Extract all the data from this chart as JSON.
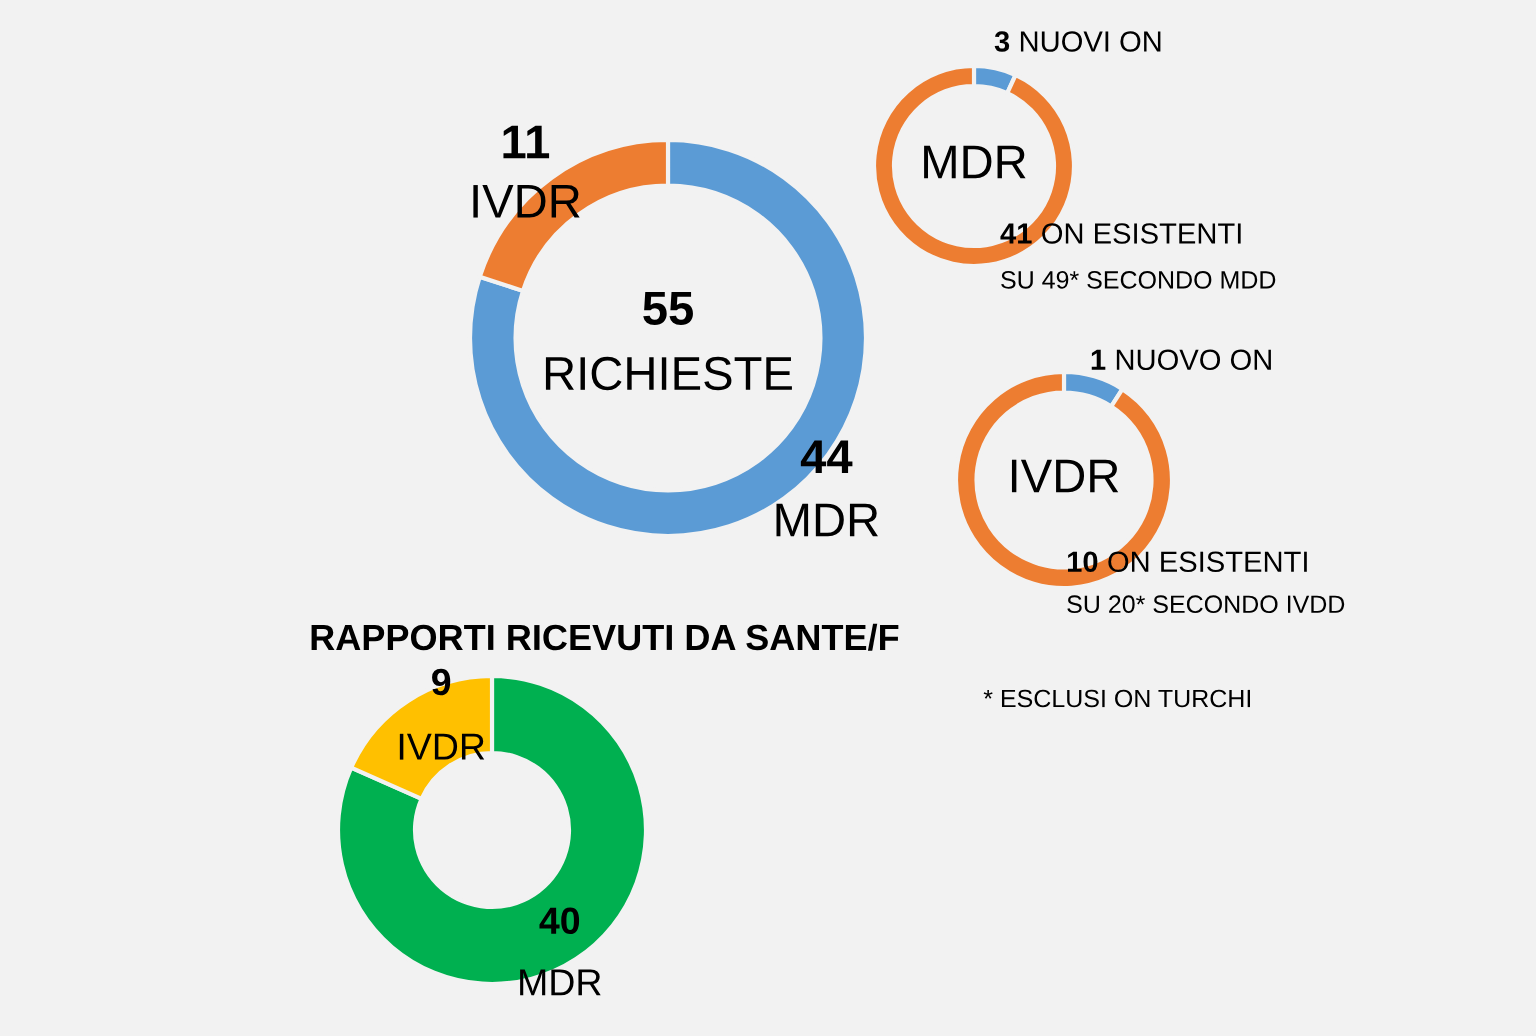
{
  "chart_data": [
    {
      "type": "donut",
      "categories": [
        "MDR",
        "IVDR"
      ],
      "values": [
        44,
        11
      ],
      "colors": [
        "#5b9bd5",
        "#ed7d31"
      ],
      "data_labels": true,
      "annotations": [
        "55",
        "RICHIESTE"
      ]
    },
    {
      "type": "donut",
      "title": "MDR",
      "categories": [
        "NUOVI ON",
        "ON ESISTENTI"
      ],
      "values": [
        3,
        41
      ],
      "colors": [
        "#5b9bd5",
        "#ed7d31"
      ],
      "data_labels": true,
      "annotations": [
        "SU 49* SECONDO MDD"
      ]
    },
    {
      "type": "donut",
      "title": "IVDR",
      "categories": [
        "NUOVO ON",
        "ON ESISTENTI"
      ],
      "values": [
        1,
        10
      ],
      "colors": [
        "#5b9bd5",
        "#ed7d31"
      ],
      "data_labels": true,
      "annotations": [
        "SU 20* SECONDO IVDD"
      ]
    },
    {
      "type": "donut",
      "title": "RAPPORTI RICEVUTI DA SANTE/F",
      "categories": [
        "MDR",
        "IVDR"
      ],
      "values": [
        40,
        9
      ],
      "colors": [
        "#00b050",
        "#ffc000"
      ],
      "data_labels": true,
      "annotations": [
        "* ESCLUSI ON TURCHI"
      ]
    }
  ]
}
